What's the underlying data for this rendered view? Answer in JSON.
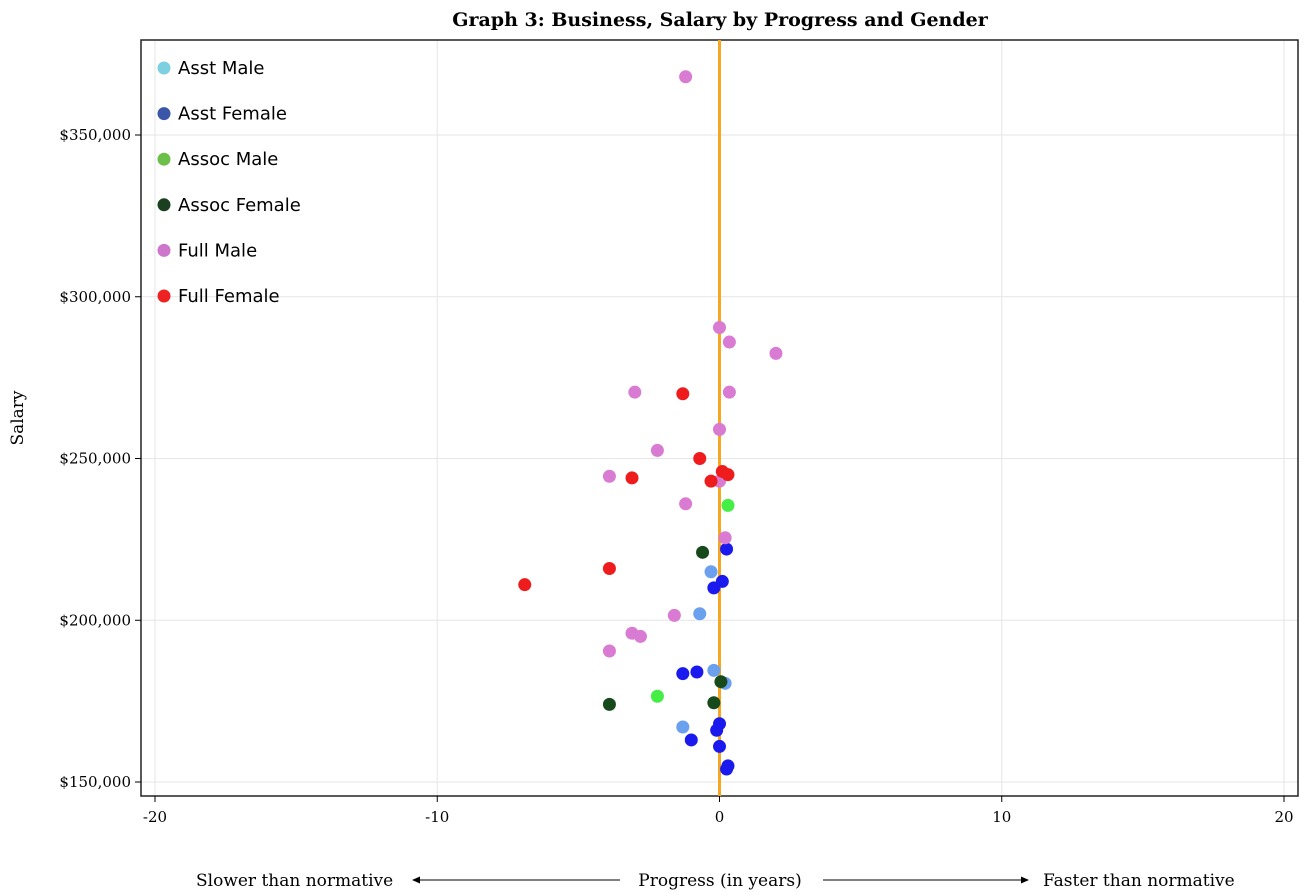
{
  "chart_data": {
    "type": "scatter",
    "title": "Graph 3: Business, Salary by Progress and Gender",
    "xlabel": "Progress (in years)",
    "ylabel": "Salary",
    "xlim": [
      -20,
      20
    ],
    "ylim": [
      146000,
      372000
    ],
    "xticks": [
      -20,
      -10,
      0,
      10,
      20
    ],
    "xtick_labels": [
      "-20",
      "-10",
      "0",
      "10",
      "20"
    ],
    "yticks": [
      150000,
      200000,
      250000,
      300000,
      350000
    ],
    "ytick_labels": [
      "$150,000",
      "$200,000",
      "$250,000",
      "$300,000",
      "$350,000"
    ],
    "grid": true,
    "reference_line": {
      "x": 0,
      "color": "#f5a623"
    },
    "legend_position": "top-left",
    "annotations": {
      "left": "Slower than normative",
      "right": "Faster than normative"
    },
    "series": [
      {
        "name": "Asst Male",
        "legend_color": "#7ecfe0",
        "color": "#6aa0ee",
        "points": [
          [
            -0.3,
            215000
          ],
          [
            -0.7,
            202000
          ],
          [
            -0.2,
            184500
          ],
          [
            0.2,
            180500
          ],
          [
            -1.3,
            167000
          ]
        ]
      },
      {
        "name": "Asst Female",
        "legend_color": "#3a56a8",
        "color": "#1a1aee",
        "points": [
          [
            0.25,
            222000
          ],
          [
            0.1,
            212000
          ],
          [
            -0.2,
            210000
          ],
          [
            -0.8,
            184000
          ],
          [
            -1.3,
            183500
          ],
          [
            0,
            168000
          ],
          [
            -0.1,
            166000
          ],
          [
            -1,
            163000
          ],
          [
            0,
            161000
          ],
          [
            0.3,
            155000
          ],
          [
            0.25,
            154000
          ]
        ]
      },
      {
        "name": "Assoc Male",
        "legend_color": "#6cc04a",
        "color": "#44ee44",
        "points": [
          [
            0.3,
            235500
          ],
          [
            -2.2,
            176500
          ]
        ]
      },
      {
        "name": "Assoc Female",
        "legend_color": "#1a4020",
        "color": "#174a1a",
        "points": [
          [
            -0.6,
            221000
          ],
          [
            0.05,
            181000
          ],
          [
            -0.2,
            174500
          ],
          [
            -3.9,
            174000
          ]
        ]
      },
      {
        "name": "Full Male",
        "legend_color": "#cc77cc",
        "color": "#d97ad3",
        "points": [
          [
            -1.2,
            368000
          ],
          [
            0,
            290500
          ],
          [
            0.35,
            286000
          ],
          [
            2,
            282500
          ],
          [
            -3,
            270500
          ],
          [
            0.35,
            270500
          ],
          [
            0,
            259000
          ],
          [
            -2.2,
            252500
          ],
          [
            -3.9,
            244500
          ],
          [
            0,
            243000
          ],
          [
            -1.2,
            236000
          ],
          [
            0.2,
            225500
          ],
          [
            -1.6,
            201500
          ],
          [
            -3.1,
            196000
          ],
          [
            -2.8,
            195000
          ],
          [
            -3.9,
            190500
          ]
        ]
      },
      {
        "name": "Full Female",
        "legend_color": "#ee2222",
        "color": "#ee1c1c",
        "points": [
          [
            -1.3,
            270000
          ],
          [
            -0.7,
            250000
          ],
          [
            0.1,
            246000
          ],
          [
            0.3,
            245000
          ],
          [
            -3.1,
            244000
          ],
          [
            -0.3,
            243000
          ],
          [
            -3.9,
            216000
          ],
          [
            -6.9,
            211000
          ]
        ]
      }
    ]
  }
}
